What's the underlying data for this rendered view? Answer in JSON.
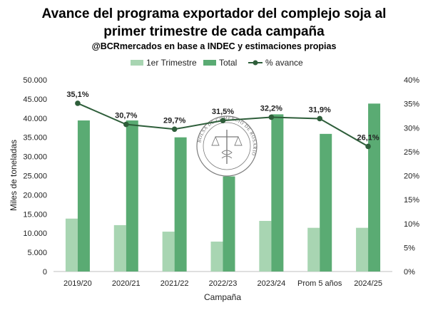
{
  "chart_data": {
    "type": "bar",
    "title_line1": "Avance del programa exportador del complejo soja al",
    "title_line2": "primer trimestre de cada campaña",
    "subtitle": "@BCRmercados en base a INDEC y estimaciones propias",
    "xlabel": "Campaña",
    "ylabel": "Miles de toneladas",
    "categories": [
      "2019/20",
      "2020/21",
      "2021/22",
      "2022/23",
      "2023/24",
      "Prom 5 años",
      "2024/25"
    ],
    "series": [
      {
        "name": "1er Trimestre",
        "type": "bar",
        "color": "#a8d5b2",
        "values": [
          13800,
          12100,
          10400,
          7800,
          13200,
          11400,
          11400
        ]
      },
      {
        "name": "Total",
        "type": "bar",
        "color": "#5aab73",
        "values": [
          39400,
          39400,
          35000,
          24800,
          41000,
          35900,
          43800
        ]
      },
      {
        "name": "% avance",
        "type": "line",
        "axis": "right",
        "color": "#2e5e3a",
        "values": [
          35.1,
          30.7,
          29.7,
          31.5,
          32.2,
          31.9,
          26.1
        ],
        "labels": [
          "35,1%",
          "30,7%",
          "29,7%",
          "31,5%",
          "32,2%",
          "31,9%",
          "26,1%"
        ]
      }
    ],
    "ylim": [
      0,
      50000
    ],
    "yticks": [
      "0",
      "5.000",
      "10.000",
      "15.000",
      "20.000",
      "25.000",
      "30.000",
      "35.000",
      "40.000",
      "45.000",
      "50.000"
    ],
    "y2lim": [
      0,
      40
    ],
    "y2ticks": [
      "0%",
      "5%",
      "10%",
      "15%",
      "20%",
      "25%",
      "30%",
      "35%",
      "40%"
    ],
    "grid": false,
    "legend_position": "top-center",
    "watermark": "BOLSA DE COMERCIO DE ROSARIO"
  }
}
